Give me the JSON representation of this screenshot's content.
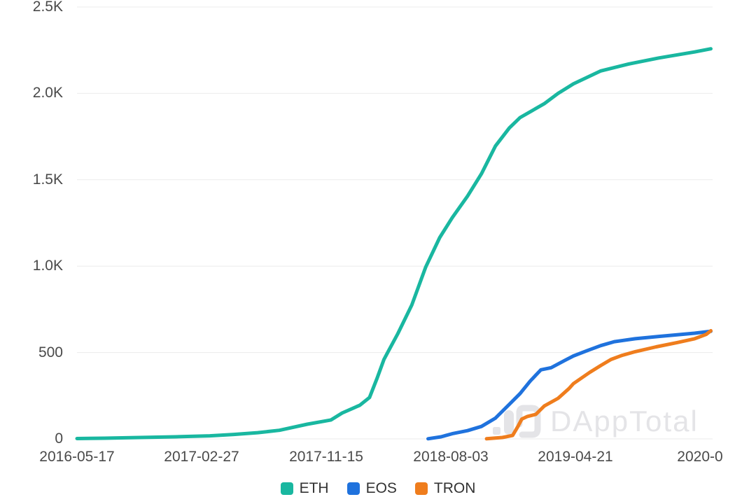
{
  "chart_data": {
    "type": "line",
    "title": "",
    "xlabel": "",
    "ylabel": "",
    "grid": true,
    "legend_position": "bottom",
    "watermark": {
      "text": "DAppTotal"
    },
    "colors": {
      "eth": "#19b7a0",
      "eos": "#1f72dd",
      "tron": "#ef7d1d",
      "gridline": "#ebebeb",
      "axis_text": "#4a4a4a",
      "legend_text": "#333333",
      "watermark_gray": "#e4e4e7"
    },
    "yaxis": {
      "lim": [
        0,
        2500
      ],
      "ticks": [
        {
          "label": "0",
          "value": 0
        },
        {
          "label": "500",
          "value": 500
        },
        {
          "label": "1.0K",
          "value": 1000
        },
        {
          "label": "1.5K",
          "value": 1500
        },
        {
          "label": "2.0K",
          "value": 2000
        },
        {
          "label": "2.5K",
          "value": 2500
        }
      ]
    },
    "xaxis": {
      "min": "2016-05-17",
      "max": "2020-02-11",
      "tick_labels": [
        "2016-05-17",
        "2017-02-27",
        "2017-11-15",
        "2018-08-03",
        "2019-04-21",
        "2020-0"
      ]
    },
    "legend": {
      "items": [
        {
          "label": "ETH",
          "color": "#19b7a0"
        },
        {
          "label": "EOS",
          "color": "#1f72dd"
        },
        {
          "label": "TRON",
          "color": "#ef7d1d"
        }
      ]
    },
    "series": [
      {
        "name": "ETH",
        "color": "#19b7a0",
        "points": [
          [
            "2016-05-17",
            2
          ],
          [
            "2016-07-15",
            4
          ],
          [
            "2016-09-29",
            8
          ],
          [
            "2016-12-15",
            12
          ],
          [
            "2017-02-27",
            18
          ],
          [
            "2017-04-20",
            26
          ],
          [
            "2017-06-10",
            36
          ],
          [
            "2017-07-27",
            50
          ],
          [
            "2017-09-25",
            85
          ],
          [
            "2017-11-15",
            110
          ],
          [
            "2017-12-09",
            150
          ],
          [
            "2018-01-16",
            195
          ],
          [
            "2018-02-06",
            240
          ],
          [
            "2018-02-22",
            350
          ],
          [
            "2018-03-09",
            460
          ],
          [
            "2018-03-17",
            500
          ],
          [
            "2018-04-08",
            610
          ],
          [
            "2018-05-08",
            775
          ],
          [
            "2018-06-07",
            995
          ],
          [
            "2018-07-07",
            1165
          ],
          [
            "2018-08-03",
            1280
          ],
          [
            "2018-09-05",
            1405
          ],
          [
            "2018-10-05",
            1535
          ],
          [
            "2018-11-04",
            1695
          ],
          [
            "2018-12-04",
            1800
          ],
          [
            "2018-12-27",
            1860
          ],
          [
            "2019-02-17",
            1940
          ],
          [
            "2019-03-19",
            2000
          ],
          [
            "2019-04-21",
            2055
          ],
          [
            "2019-06-19",
            2130
          ],
          [
            "2019-08-18",
            2170
          ],
          [
            "2019-10-22",
            2205
          ],
          [
            "2020-01-07",
            2240
          ],
          [
            "2020-02-11",
            2258
          ]
        ]
      },
      {
        "name": "EOS",
        "color": "#1f72dd",
        "points": [
          [
            "2018-06-12",
            1
          ],
          [
            "2018-07-10",
            12
          ],
          [
            "2018-08-03",
            30
          ],
          [
            "2018-09-05",
            48
          ],
          [
            "2018-10-05",
            72
          ],
          [
            "2018-11-04",
            120
          ],
          [
            "2018-12-04",
            200
          ],
          [
            "2018-12-27",
            262
          ],
          [
            "2019-01-18",
            335
          ],
          [
            "2019-02-10",
            400
          ],
          [
            "2019-03-04",
            412
          ],
          [
            "2019-04-03",
            455
          ],
          [
            "2019-04-21",
            480
          ],
          [
            "2019-05-20",
            510
          ],
          [
            "2019-06-19",
            540
          ],
          [
            "2019-07-18",
            563
          ],
          [
            "2019-09-01",
            580
          ],
          [
            "2019-10-22",
            593
          ],
          [
            "2020-01-07",
            612
          ],
          [
            "2020-02-11",
            623
          ]
        ]
      },
      {
        "name": "TRON",
        "color": "#ef7d1d",
        "points": [
          [
            "2018-10-16",
            1
          ],
          [
            "2018-11-19",
            8
          ],
          [
            "2018-12-11",
            20
          ],
          [
            "2018-12-22",
            70
          ],
          [
            "2018-12-31",
            115
          ],
          [
            "2019-01-12",
            130
          ],
          [
            "2019-01-30",
            142
          ],
          [
            "2019-02-17",
            190
          ],
          [
            "2019-03-19",
            235
          ],
          [
            "2019-04-11",
            290
          ],
          [
            "2019-04-21",
            320
          ],
          [
            "2019-05-26",
            385
          ],
          [
            "2019-06-19",
            425
          ],
          [
            "2019-07-11",
            460
          ],
          [
            "2019-08-03",
            483
          ],
          [
            "2019-09-01",
            505
          ],
          [
            "2019-10-16",
            533
          ],
          [
            "2019-12-01",
            558
          ],
          [
            "2020-01-07",
            580
          ],
          [
            "2020-02-01",
            605
          ],
          [
            "2020-02-11",
            626
          ]
        ]
      }
    ]
  }
}
